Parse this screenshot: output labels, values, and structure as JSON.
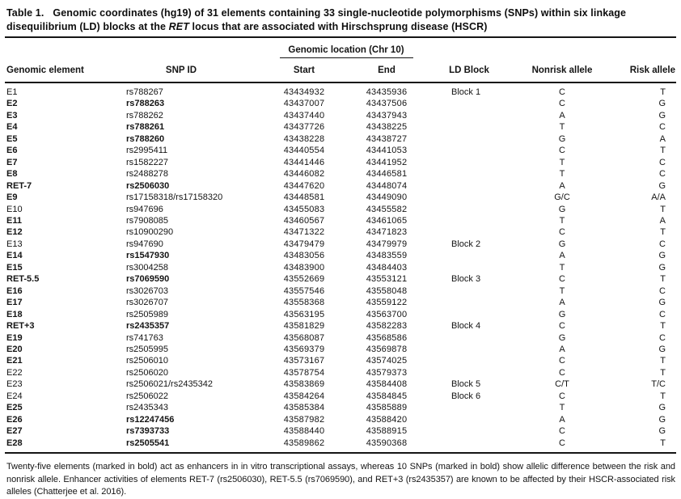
{
  "title": {
    "label": "Table 1.",
    "text_before_gene": "Genomic coordinates (hg19) of 31 elements containing 33 single-nucleotide polymorphisms (SNPs) within six linkage disequilibrium (LD) blocks at the ",
    "gene": "RET",
    "text_after_gene": " locus that are associated with Hirschsprung disease (HSCR)"
  },
  "table": {
    "group_header": "Genomic location (Chr 10)",
    "columns": [
      "Genomic element",
      "SNP ID",
      "Start",
      "End",
      "LD Block",
      "Nonrisk allele",
      "Risk allele"
    ],
    "rows": [
      {
        "el": "E1",
        "elb": false,
        "snp": "rs788267",
        "snpb": false,
        "start": "43434932",
        "end": "43435936",
        "block": "Block 1",
        "nr": "C",
        "r": "T"
      },
      {
        "el": "E2",
        "elb": true,
        "snp": "rs788263",
        "snpb": true,
        "start": "43437007",
        "end": "43437506",
        "block": "",
        "nr": "C",
        "r": "G"
      },
      {
        "el": "E3",
        "elb": true,
        "snp": "rs788262",
        "snpb": false,
        "start": "43437440",
        "end": "43437943",
        "block": "",
        "nr": "A",
        "r": "G"
      },
      {
        "el": "E4",
        "elb": true,
        "snp": "rs788261",
        "snpb": true,
        "start": "43437726",
        "end": "43438225",
        "block": "",
        "nr": "T",
        "r": "C"
      },
      {
        "el": "E5",
        "elb": true,
        "snp": "rs788260",
        "snpb": true,
        "start": "43438228",
        "end": "43438727",
        "block": "",
        "nr": "G",
        "r": "A"
      },
      {
        "el": "E6",
        "elb": true,
        "snp": "rs2995411",
        "snpb": false,
        "start": "43440554",
        "end": "43441053",
        "block": "",
        "nr": "C",
        "r": "T"
      },
      {
        "el": "E7",
        "elb": true,
        "snp": "rs1582227",
        "snpb": false,
        "start": "43441446",
        "end": "43441952",
        "block": "",
        "nr": "T",
        "r": "C"
      },
      {
        "el": "E8",
        "elb": true,
        "snp": "rs2488278",
        "snpb": false,
        "start": "43446082",
        "end": "43446581",
        "block": "",
        "nr": "T",
        "r": "C"
      },
      {
        "el": "RET-7",
        "elb": true,
        "snp": "rs2506030",
        "snpb": true,
        "start": "43447620",
        "end": "43448074",
        "block": "",
        "nr": "A",
        "r": "G"
      },
      {
        "el": "E9",
        "elb": true,
        "snp": "rs17158318/rs17158320",
        "snpb": false,
        "start": "43448581",
        "end": "43449090",
        "block": "",
        "nr": "G/C",
        "r": "A/A"
      },
      {
        "el": "E10",
        "elb": false,
        "snp": "rs947696",
        "snpb": false,
        "start": "43455083",
        "end": "43455582",
        "block": "",
        "nr": "G",
        "r": "T"
      },
      {
        "el": "E11",
        "elb": true,
        "snp": "rs7908085",
        "snpb": false,
        "start": "43460567",
        "end": "43461065",
        "block": "",
        "nr": "T",
        "r": "A"
      },
      {
        "el": "E12",
        "elb": true,
        "snp": "rs10900290",
        "snpb": false,
        "start": "43471322",
        "end": "43471823",
        "block": "",
        "nr": "C",
        "r": "T"
      },
      {
        "el": "E13",
        "elb": false,
        "snp": "rs947690",
        "snpb": false,
        "start": "43479479",
        "end": "43479979",
        "block": "Block 2",
        "nr": "G",
        "r": "C"
      },
      {
        "el": "E14",
        "elb": true,
        "snp": "rs1547930",
        "snpb": true,
        "start": "43483056",
        "end": "43483559",
        "block": "",
        "nr": "A",
        "r": "G"
      },
      {
        "el": "E15",
        "elb": true,
        "snp": "rs3004258",
        "snpb": false,
        "start": "43483900",
        "end": "43484403",
        "block": "",
        "nr": "T",
        "r": "G"
      },
      {
        "el": "RET-5.5",
        "elb": true,
        "snp": "rs7069590",
        "snpb": true,
        "start": "43552669",
        "end": "43553121",
        "block": "Block 3",
        "nr": "C",
        "r": "T"
      },
      {
        "el": "E16",
        "elb": true,
        "snp": "rs3026703",
        "snpb": false,
        "start": "43557546",
        "end": "43558048",
        "block": "",
        "nr": "T",
        "r": "C"
      },
      {
        "el": "E17",
        "elb": true,
        "snp": "rs3026707",
        "snpb": false,
        "start": "43558368",
        "end": "43559122",
        "block": "",
        "nr": "A",
        "r": "G"
      },
      {
        "el": "E18",
        "elb": true,
        "snp": "rs2505989",
        "snpb": false,
        "start": "43563195",
        "end": "43563700",
        "block": "",
        "nr": "G",
        "r": "C"
      },
      {
        "el": "RET+3",
        "elb": true,
        "snp": "rs2435357",
        "snpb": true,
        "start": "43581829",
        "end": "43582283",
        "block": "Block 4",
        "nr": "C",
        "r": "T"
      },
      {
        "el": "E19",
        "elb": true,
        "snp": "rs741763",
        "snpb": false,
        "start": "43568087",
        "end": "43568586",
        "block": "",
        "nr": "G",
        "r": "C"
      },
      {
        "el": "E20",
        "elb": true,
        "snp": "rs2505995",
        "snpb": false,
        "start": "43569379",
        "end": "43569878",
        "block": "",
        "nr": "A",
        "r": "G"
      },
      {
        "el": "E21",
        "elb": true,
        "snp": "rs2506010",
        "snpb": false,
        "start": "43573167",
        "end": "43574025",
        "block": "",
        "nr": "C",
        "r": "T"
      },
      {
        "el": "E22",
        "elb": false,
        "snp": "rs2506020",
        "snpb": false,
        "start": "43578754",
        "end": "43579373",
        "block": "",
        "nr": "C",
        "r": "T"
      },
      {
        "el": "E23",
        "elb": false,
        "snp": "rs2506021/rs2435342",
        "snpb": false,
        "start": "43583869",
        "end": "43584408",
        "block": "Block 5",
        "nr": "C/T",
        "r": "T/C"
      },
      {
        "el": "E24",
        "elb": false,
        "snp": "rs2506022",
        "snpb": false,
        "start": "43584264",
        "end": "43584845",
        "block": "Block 6",
        "nr": "C",
        "r": "T"
      },
      {
        "el": "E25",
        "elb": true,
        "snp": "rs2435343",
        "snpb": false,
        "start": "43585384",
        "end": "43585889",
        "block": "",
        "nr": "T",
        "r": "G"
      },
      {
        "el": "E26",
        "elb": true,
        "snp": "rs12247456",
        "snpb": true,
        "start": "43587982",
        "end": "43588420",
        "block": "",
        "nr": "A",
        "r": "G"
      },
      {
        "el": "E27",
        "elb": true,
        "snp": "rs7393733",
        "snpb": true,
        "start": "43588440",
        "end": "43588915",
        "block": "",
        "nr": "C",
        "r": "G"
      },
      {
        "el": "E28",
        "elb": true,
        "snp": "rs2505541",
        "snpb": true,
        "start": "43589862",
        "end": "43590368",
        "block": "",
        "nr": "C",
        "r": "T"
      }
    ]
  },
  "footnote": "Twenty-five elements (marked in bold) act as enhancers in in vitro transcriptional assays, whereas 10 SNPs (marked in bold) show allelic difference between the risk and nonrisk allele. Enhancer activities of elements RET-7 (rs2506030), RET-5.5 (rs7069590), and RET+3 (rs2435357) are known to be affected by their HSCR-associated risk alleles (Chatterjee et al. 2016)."
}
